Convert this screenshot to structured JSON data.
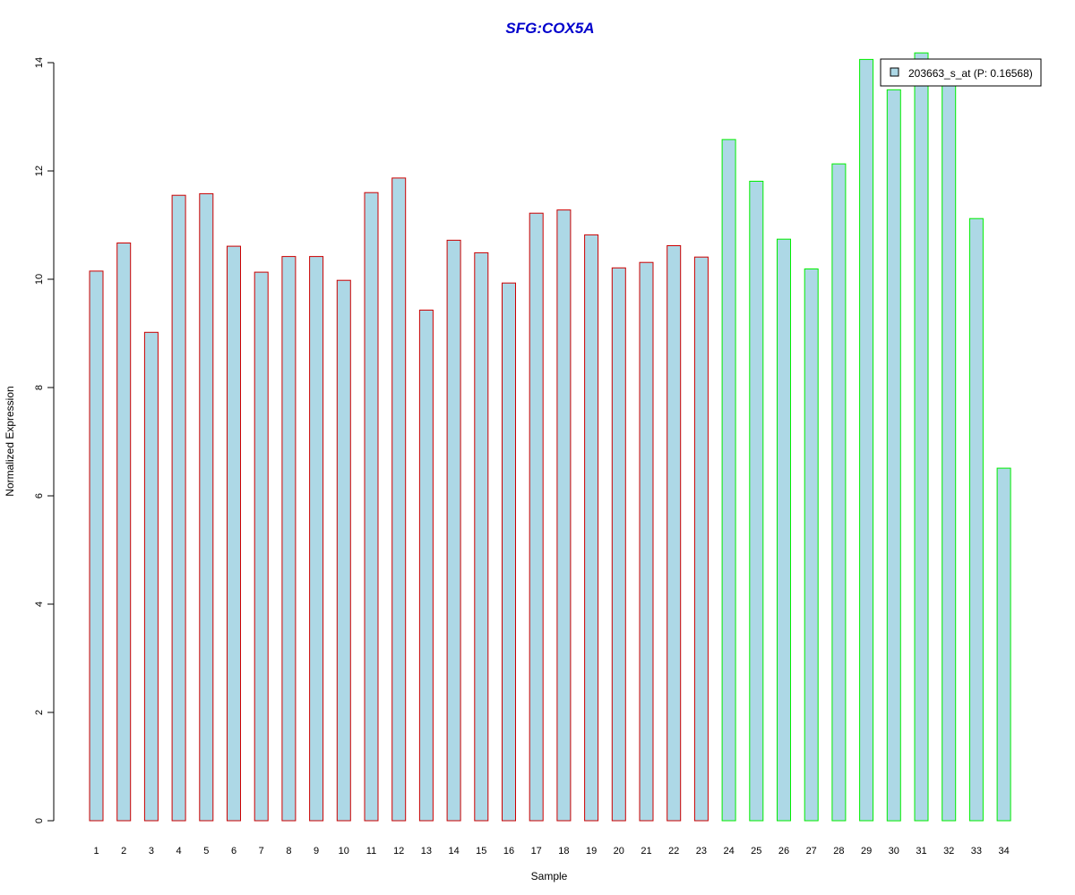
{
  "chart_data": {
    "type": "bar",
    "title": "SFG:COX5A",
    "xlabel": "Sample",
    "ylabel": "Normalized Expression",
    "categories": [
      "1",
      "2",
      "3",
      "4",
      "5",
      "6",
      "7",
      "8",
      "9",
      "10",
      "11",
      "12",
      "13",
      "14",
      "15",
      "16",
      "17",
      "18",
      "19",
      "20",
      "21",
      "22",
      "23",
      "24",
      "25",
      "26",
      "27",
      "28",
      "29",
      "30",
      "31",
      "32",
      "33",
      "34"
    ],
    "series": [
      {
        "name": "203663_s_at (P: 0.16568)",
        "values": [
          10.15,
          10.67,
          9.02,
          11.55,
          11.58,
          10.61,
          10.13,
          10.42,
          10.42,
          9.98,
          11.6,
          11.87,
          9.43,
          10.72,
          10.49,
          9.93,
          11.22,
          11.28,
          10.82,
          10.21,
          10.31,
          10.62,
          10.41,
          12.58,
          11.81,
          10.74,
          10.19,
          12.13,
          14.06,
          13.5,
          14.18,
          13.63,
          11.12,
          6.51
        ]
      }
    ],
    "group_sizes": [
      23,
      11
    ],
    "ylim": [
      0,
      14
    ],
    "yticks": [
      0,
      2,
      4,
      6,
      8,
      10,
      12,
      14
    ],
    "grid": false,
    "legend_position": "top-right",
    "colors": {
      "title": "#0000cc",
      "bar_fill": "#add8e6",
      "group1_border": "#cc0000",
      "group2_border": "#00ee00",
      "axis": "#000000"
    }
  }
}
